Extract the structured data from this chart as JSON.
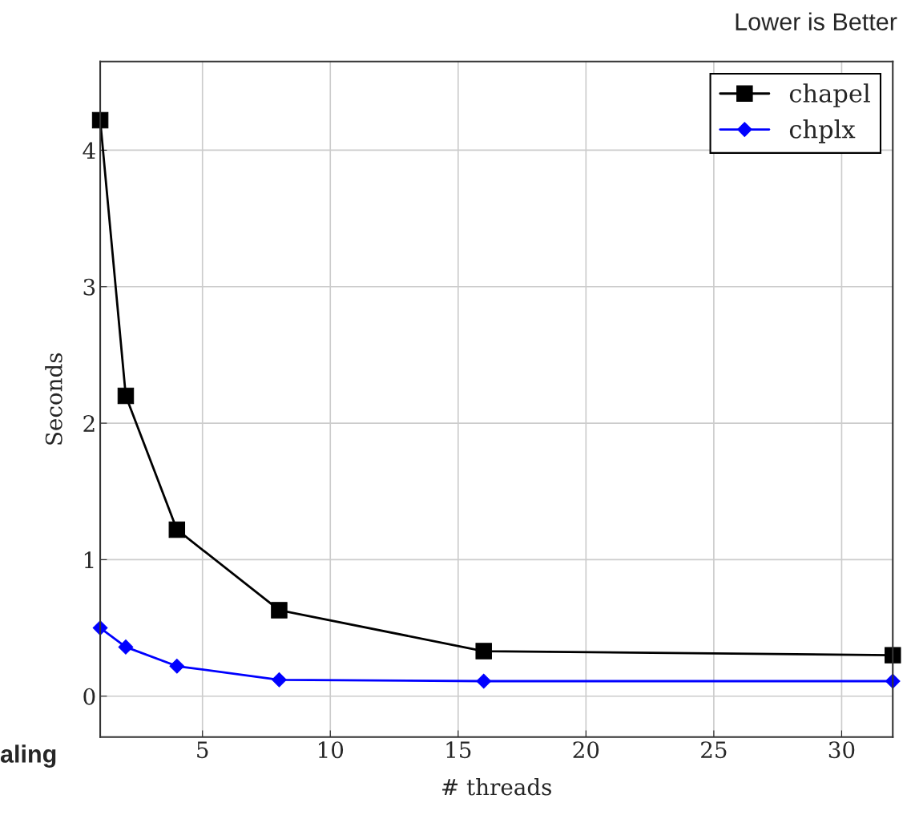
{
  "chart_data": {
    "type": "line",
    "xlabel": "# threads",
    "ylabel": "Seconds",
    "annotations": [
      "Lower is Better",
      "aling"
    ],
    "series": [
      {
        "name": "chapel",
        "color": "#000000",
        "marker": "square",
        "x": [
          1,
          2,
          4,
          8,
          16,
          32
        ],
        "values": [
          4.22,
          2.2,
          1.22,
          0.63,
          0.33,
          0.3
        ]
      },
      {
        "name": "chplx",
        "color": "#0000ff",
        "marker": "diamond",
        "x": [
          1,
          2,
          4,
          8,
          16,
          32
        ],
        "values": [
          0.5,
          0.36,
          0.22,
          0.12,
          0.11,
          0.11
        ]
      }
    ],
    "xlim": [
      1,
      32
    ],
    "xticks": [
      5,
      10,
      15,
      20,
      25,
      30
    ],
    "ylim": [
      -0.3,
      4.65
    ],
    "yticks": [
      0,
      1,
      2,
      3,
      4
    ],
    "grid": true,
    "legend": "top right",
    "line_style": "solid"
  }
}
